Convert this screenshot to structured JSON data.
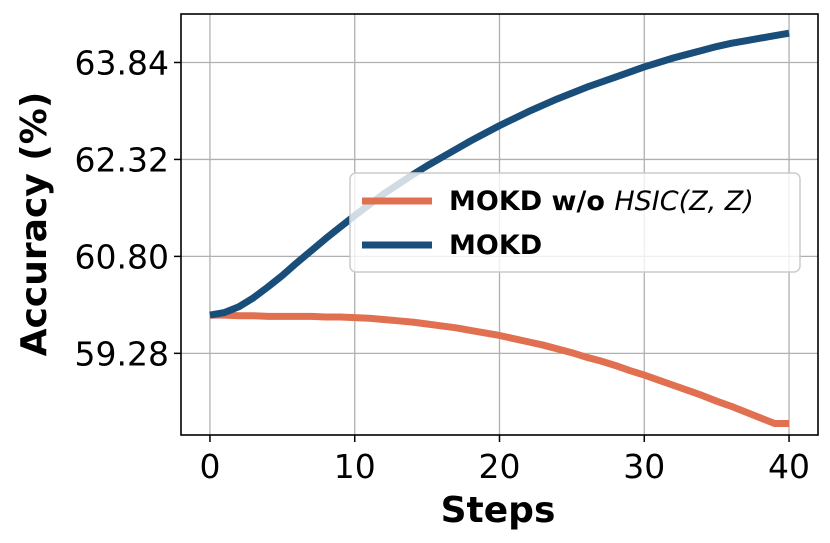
{
  "chart_data": {
    "type": "line",
    "xlabel": "Steps",
    "ylabel": "Accuracy (%)",
    "xlim": [
      -2,
      42
    ],
    "ylim": [
      58.0,
      64.6
    ],
    "xticks": [
      0,
      10,
      20,
      30,
      40
    ],
    "xtick_labels": [
      "0",
      "10",
      "20",
      "30",
      "40"
    ],
    "yticks": [
      59.28,
      60.8,
      62.32,
      63.84
    ],
    "ytick_labels": [
      "59.28",
      "60.80",
      "62.32",
      "63.84"
    ],
    "grid": true,
    "legend_position": "center-right",
    "x": [
      0,
      1,
      2,
      3,
      4,
      5,
      6,
      7,
      8,
      9,
      10,
      11,
      12,
      13,
      14,
      15,
      16,
      17,
      18,
      19,
      20,
      21,
      22,
      23,
      24,
      25,
      26,
      27,
      28,
      29,
      30,
      31,
      32,
      33,
      34,
      35,
      36,
      37,
      38,
      39,
      40
    ],
    "series": [
      {
        "name": "MOKD w/o HSIC(Z, Z)",
        "legend_prefix": "MOKD w/o ",
        "legend_math": "HSIC(Z, Z)",
        "color": "#e07050",
        "values": [
          59.88,
          59.88,
          59.87,
          59.87,
          59.86,
          59.86,
          59.86,
          59.86,
          59.85,
          59.85,
          59.84,
          59.83,
          59.81,
          59.79,
          59.77,
          59.74,
          59.71,
          59.68,
          59.64,
          59.6,
          59.56,
          59.51,
          59.46,
          59.41,
          59.35,
          59.29,
          59.22,
          59.16,
          59.09,
          59.01,
          58.94,
          58.86,
          58.78,
          58.7,
          58.62,
          58.53,
          58.45,
          58.36,
          58.27,
          58.18,
          58.18
        ]
      },
      {
        "name": "MOKD",
        "legend_prefix": "MOKD",
        "legend_math": "",
        "color": "#1a4e7a",
        "values": [
          59.88,
          59.92,
          60.01,
          60.15,
          60.32,
          60.5,
          60.7,
          60.89,
          61.08,
          61.26,
          61.44,
          61.61,
          61.78,
          61.93,
          62.08,
          62.22,
          62.35,
          62.48,
          62.61,
          62.73,
          62.85,
          62.96,
          63.07,
          63.17,
          63.27,
          63.36,
          63.45,
          63.53,
          63.61,
          63.69,
          63.77,
          63.84,
          63.91,
          63.97,
          64.03,
          64.09,
          64.14,
          64.18,
          64.22,
          64.26,
          64.3
        ]
      }
    ]
  }
}
